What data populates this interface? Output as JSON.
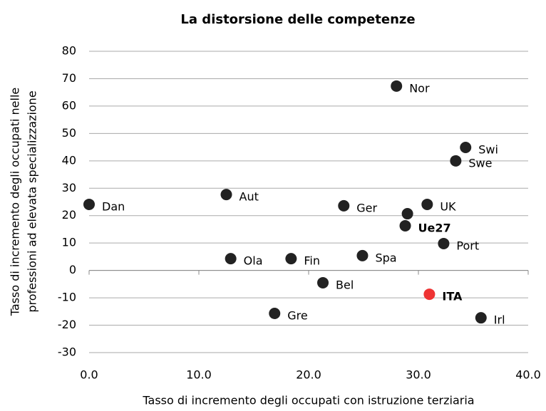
{
  "chart_data": {
    "type": "scatter",
    "title": "La distorsione delle competenze",
    "xlabel": "Tasso di incremento degli occupati con istruzione terziaria",
    "ylabel": [
      "Tasso di incremento degli occupati nelle",
      "professioni ad elevata specializzazione"
    ],
    "labels": [
      "Dan",
      "Aut",
      "Ola",
      "Fin",
      "Gre",
      "Bel",
      "Ger",
      "Spa",
      "Nor",
      "Ue27",
      null,
      "UK",
      "ITA",
      "Port",
      "Swe",
      "Swi",
      "Irl"
    ],
    "x": [
      0,
      12.5,
      12.9,
      18.4,
      16.9,
      21.3,
      23.2,
      24.9,
      28.0,
      28.8,
      29.0,
      30.8,
      31.0,
      32.3,
      33.4,
      34.3,
      35.7
    ],
    "values": [
      24.1,
      27.7,
      4.3,
      4.3,
      -15.7,
      -4.5,
      23.6,
      5.4,
      67.3,
      16.3,
      20.7,
      24.1,
      -8.7,
      9.8,
      40,
      44.9,
      -17.3
    ],
    "colors": [
      "#222222",
      "#222222",
      "#222222",
      "#222222",
      "#222222",
      "#222222",
      "#222222",
      "#222222",
      "#222222",
      "#222222",
      "#222222",
      "#222222",
      "#ee3333",
      "#222222",
      "#222222",
      "#222222",
      "#222222"
    ],
    "bold": [
      false,
      false,
      false,
      false,
      false,
      false,
      false,
      false,
      false,
      true,
      false,
      false,
      true,
      false,
      false,
      false,
      false
    ],
    "xlim": [
      0,
      40
    ],
    "ylim": [
      -30,
      80
    ],
    "xticks": [
      {
        "value": 0,
        "label": "0.0"
      },
      {
        "value": 10,
        "label": "10.0"
      },
      {
        "value": 20,
        "label": "20.0"
      },
      {
        "value": 30,
        "label": "30.0"
      },
      {
        "value": 40,
        "label": "40.0"
      }
    ],
    "yticks": [
      -30,
      -20,
      -10,
      0,
      10,
      20,
      30,
      40,
      50,
      60,
      70,
      80
    ],
    "grid": true
  }
}
